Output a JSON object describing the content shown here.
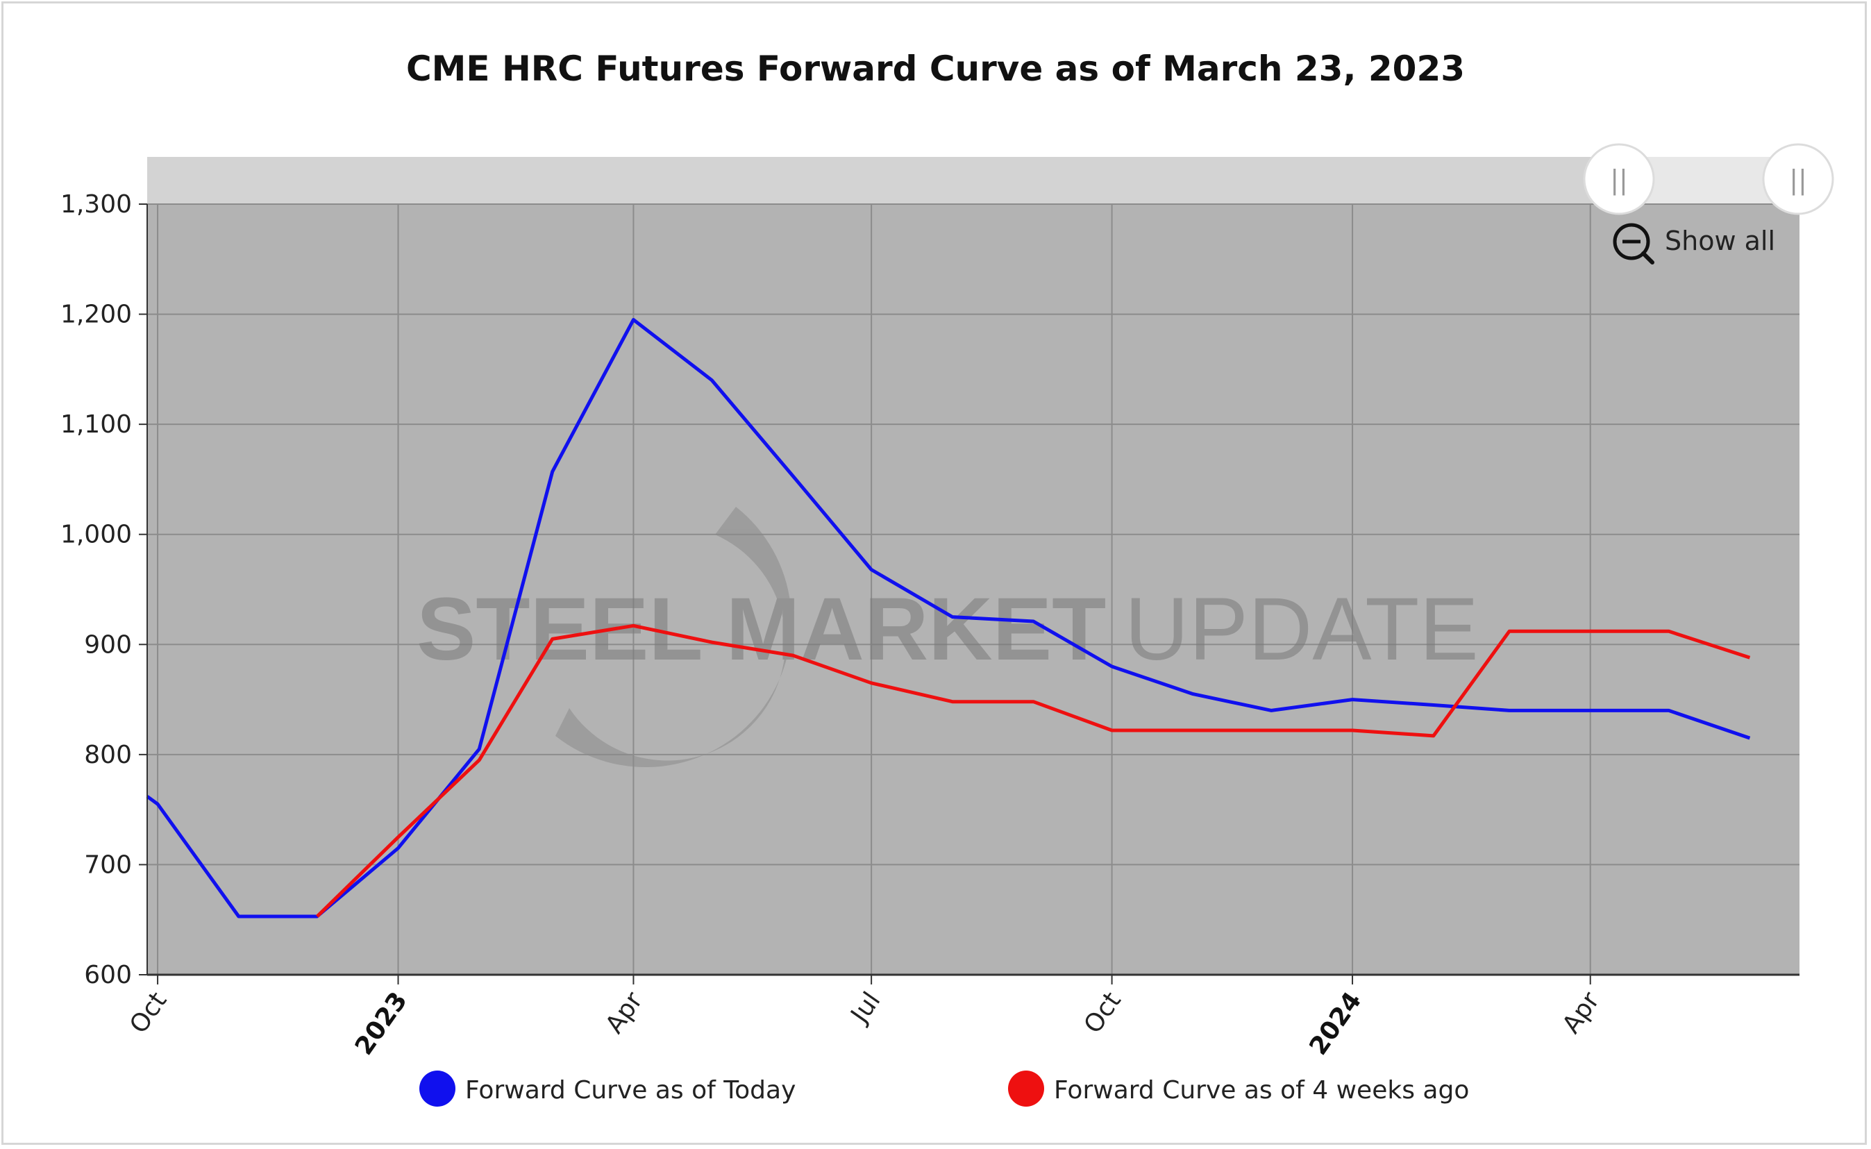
{
  "chart_data": {
    "type": "line",
    "title": "CME HRC Futures Forward Curve as of March 23, 2023",
    "xlabel": "",
    "ylabel": "",
    "ylim": [
      600,
      1300
    ],
    "yticks": [
      600,
      700,
      800,
      900,
      1000,
      1100,
      1200,
      1300
    ],
    "ytick_labels": [
      "600",
      "700",
      "800",
      "900",
      "1,000",
      "1,100",
      "1,200",
      "1,300"
    ],
    "xlim": [
      "2022-09-27",
      "2024-06-20"
    ],
    "xticks": [
      {
        "date": "2022-10-01",
        "label": "Oct",
        "major": false
      },
      {
        "date": "2023-01-01",
        "label": "2023",
        "major": true
      },
      {
        "date": "2023-04-01",
        "label": "Apr",
        "major": false
      },
      {
        "date": "2023-07-01",
        "label": "Jul",
        "major": false
      },
      {
        "date": "2023-10-01",
        "label": "Oct",
        "major": false
      },
      {
        "date": "2024-01-01",
        "label": "2024",
        "major": true
      },
      {
        "date": "2024-04-01",
        "label": "Apr",
        "major": false
      }
    ],
    "grid": true,
    "legend_position": "bottom",
    "series": [
      {
        "name": "Forward Curve as of Today",
        "color": "#1010ee",
        "points": [
          [
            "2022-09-27",
            762
          ],
          [
            "2022-10-01",
            755
          ],
          [
            "2022-11-01",
            653
          ],
          [
            "2022-12-01",
            653
          ],
          [
            "2023-01-01",
            715
          ],
          [
            "2023-02-01",
            805
          ],
          [
            "2023-03-01",
            1057
          ],
          [
            "2023-04-01",
            1195
          ],
          [
            "2023-05-01",
            1140
          ],
          [
            "2023-06-01",
            1053
          ],
          [
            "2023-07-01",
            968
          ],
          [
            "2023-08-01",
            925
          ],
          [
            "2023-09-01",
            921
          ],
          [
            "2023-10-01",
            880
          ],
          [
            "2023-11-01",
            855
          ],
          [
            "2023-12-01",
            840
          ],
          [
            "2024-01-01",
            850
          ],
          [
            "2024-02-01",
            845
          ],
          [
            "2024-03-01",
            840
          ],
          [
            "2024-04-01",
            840
          ],
          [
            "2024-05-01",
            840
          ],
          [
            "2024-06-01",
            815
          ]
        ]
      },
      {
        "name": "Forward Curve as of 4 weeks ago",
        "color": "#ee1010",
        "points": [
          [
            "2022-12-01",
            653
          ],
          [
            "2023-01-01",
            725
          ],
          [
            "2023-02-01",
            795
          ],
          [
            "2023-03-01",
            905
          ],
          [
            "2023-04-01",
            917
          ],
          [
            "2023-05-01",
            902
          ],
          [
            "2023-06-01",
            890
          ],
          [
            "2023-07-01",
            865
          ],
          [
            "2023-08-01",
            848
          ],
          [
            "2023-09-01",
            848
          ],
          [
            "2023-10-01",
            822
          ],
          [
            "2023-11-01",
            822
          ],
          [
            "2023-12-01",
            822
          ],
          [
            "2024-01-01",
            822
          ],
          [
            "2024-02-01",
            817
          ],
          [
            "2024-03-01",
            912
          ],
          [
            "2024-04-01",
            912
          ],
          [
            "2024-05-01",
            912
          ],
          [
            "2024-06-01",
            888
          ]
        ]
      }
    ]
  },
  "zoom_control": {
    "label": "Show all",
    "icon": "zoom-out-icon",
    "handle_glyph": "||"
  },
  "watermark": {
    "text_bold": "STEEL MARKET",
    "text_light": "UPDATE"
  }
}
